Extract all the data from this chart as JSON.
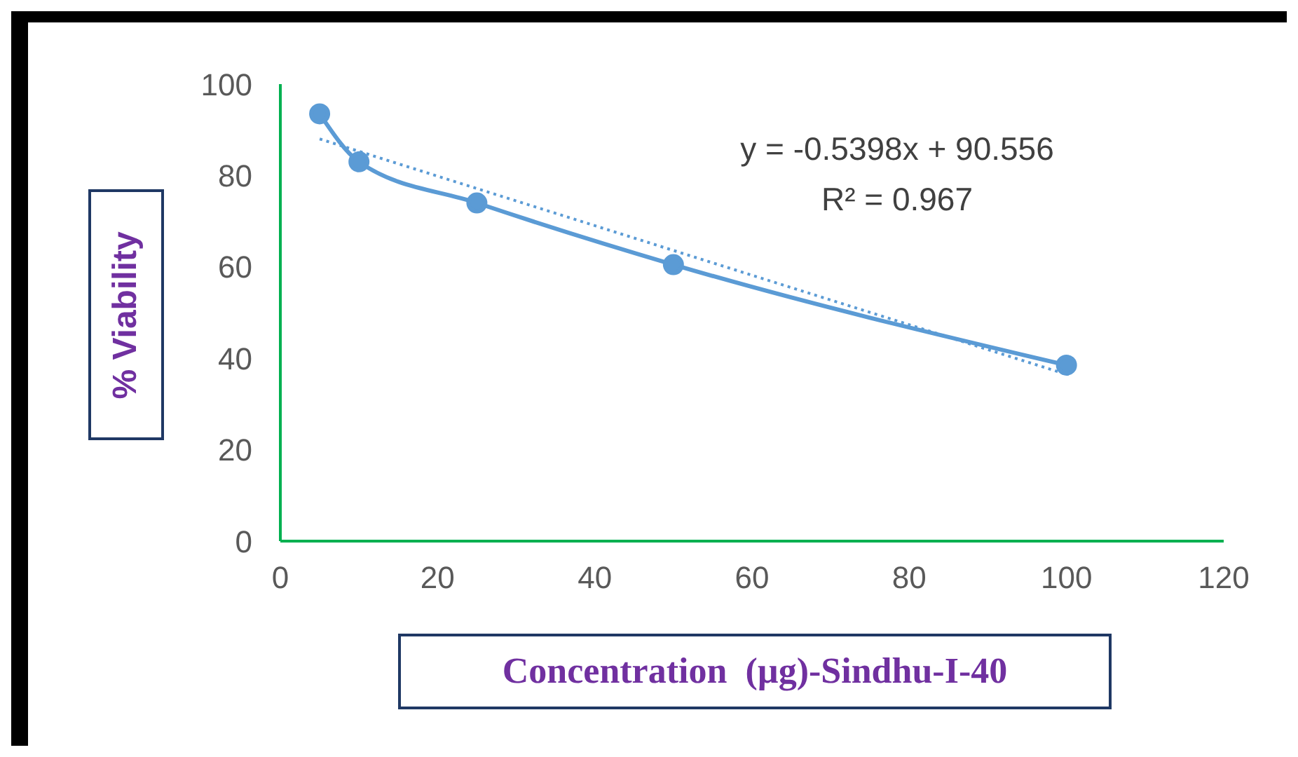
{
  "chart_data": {
    "type": "line",
    "xlabel": "Concentration  (µg)-Sindhu-I-40",
    "ylabel": "% Viability",
    "annotations": [
      "y = -0.5398x + 90.556",
      "R² = 0.967"
    ],
    "series": [
      {
        "color": "#5b9bd5",
        "x": [
          5,
          10,
          25,
          50,
          100
        ],
        "values": [
          93.5,
          83,
          74,
          60.5,
          38.5
        ],
        "marker": "circle",
        "line_style": "solid"
      },
      {
        "type": "line",
        "color": "#5b9bd5",
        "x": [
          5,
          100
        ],
        "values": [
          88,
          36.5
        ],
        "marker": "none",
        "line_style": "dotted"
      }
    ],
    "xlim": [
      0,
      120
    ],
    "xticks": [
      0,
      20,
      40,
      60,
      80,
      100,
      120
    ],
    "ylim": [
      0,
      100
    ],
    "yticks": [
      0,
      20,
      40,
      60,
      80,
      100
    ],
    "grid": false,
    "legend": false
  }
}
